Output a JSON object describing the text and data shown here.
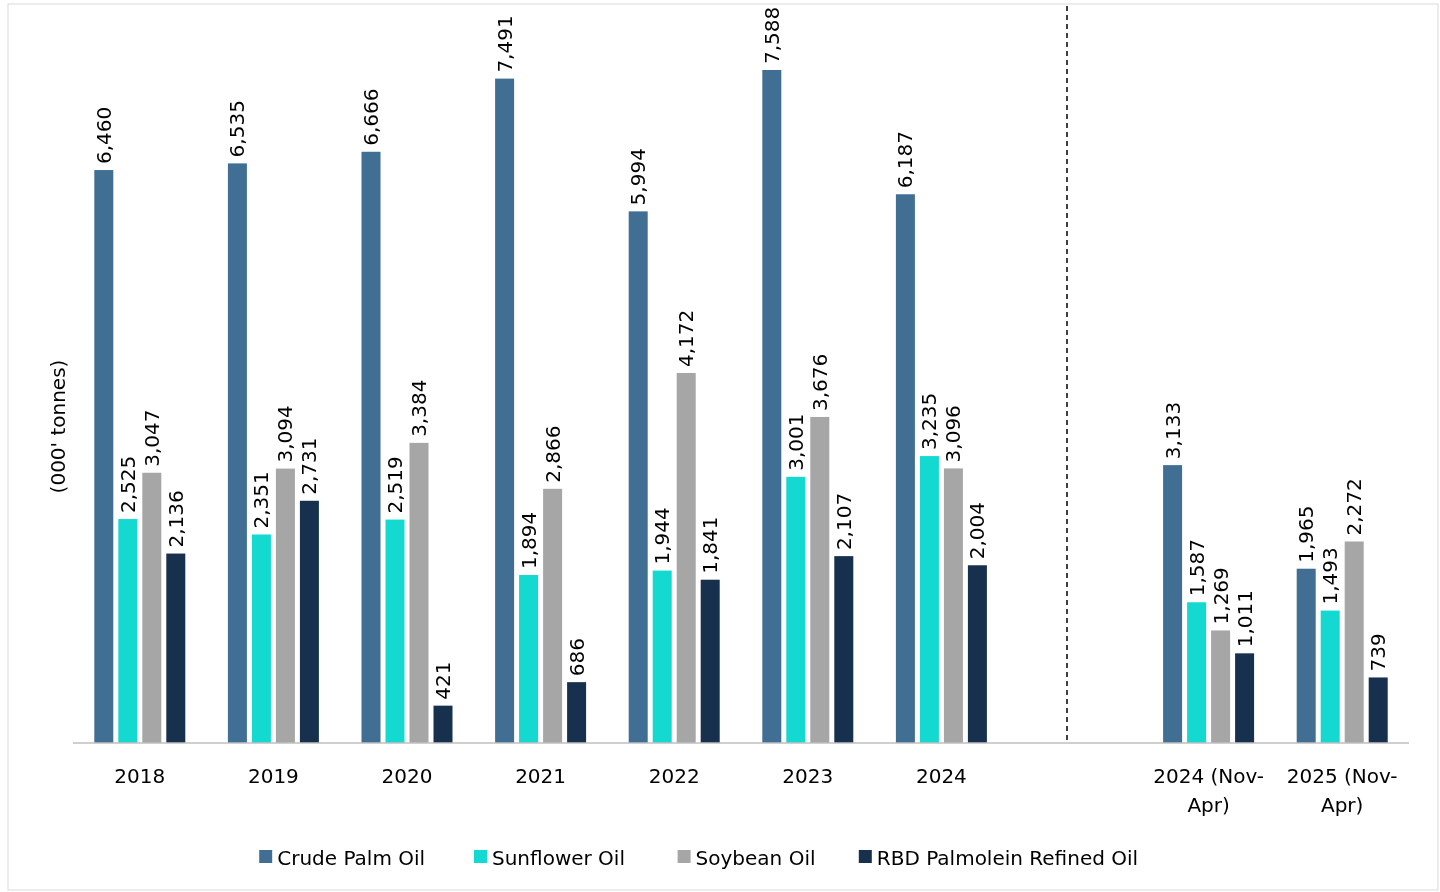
{
  "chart_data": {
    "type": "bar",
    "ylabel": "(000' tonnes)",
    "categories": [
      "2018",
      "2019",
      "2020",
      "2021",
      "2022",
      "2023",
      "2024",
      null,
      "2024 (Nov-Apr)",
      "2025 (Nov-Apr)"
    ],
    "series": [
      {
        "name": "Crude Palm Oil",
        "color": "#416f94",
        "values": [
          6460,
          6535,
          6666,
          7491,
          5994,
          7588,
          6187,
          null,
          3133,
          1965
        ],
        "value_labels": [
          "6,460",
          "6,535",
          "6,666",
          "7,491",
          "5,994",
          "7,588",
          "6,187",
          null,
          "3,133",
          "1,965"
        ]
      },
      {
        "name": "Sunflower Oil",
        "color": "#14d9d1",
        "values": [
          2525,
          2351,
          2519,
          1894,
          1944,
          3001,
          3235,
          null,
          1587,
          1493
        ],
        "value_labels": [
          "2,525",
          "2,351",
          "2,519",
          "1,894",
          "1,944",
          "3,001",
          "3,235",
          null,
          "1,587",
          "1,493"
        ]
      },
      {
        "name": "Soybean Oil",
        "color": "#a6a6a6",
        "values": [
          3047,
          3094,
          3384,
          2866,
          4172,
          3676,
          3096,
          null,
          1269,
          2272
        ],
        "value_labels": [
          "3,047",
          "3,094",
          "3,384",
          "2,866",
          "4,172",
          "3,676",
          "3,096",
          null,
          "1,269",
          "2,272"
        ]
      },
      {
        "name": "RBD Palmolein Refined Oil",
        "color": "#17304d",
        "values": [
          2136,
          2731,
          421,
          686,
          1841,
          2107,
          2004,
          null,
          1011,
          739
        ],
        "value_labels": [
          "2,136",
          "2,731",
          "421",
          "686",
          "1,841",
          "2,107",
          "2,004",
          null,
          "1,011",
          "739"
        ]
      }
    ],
    "legend": "bottom",
    "tick_labels": "x"
  }
}
